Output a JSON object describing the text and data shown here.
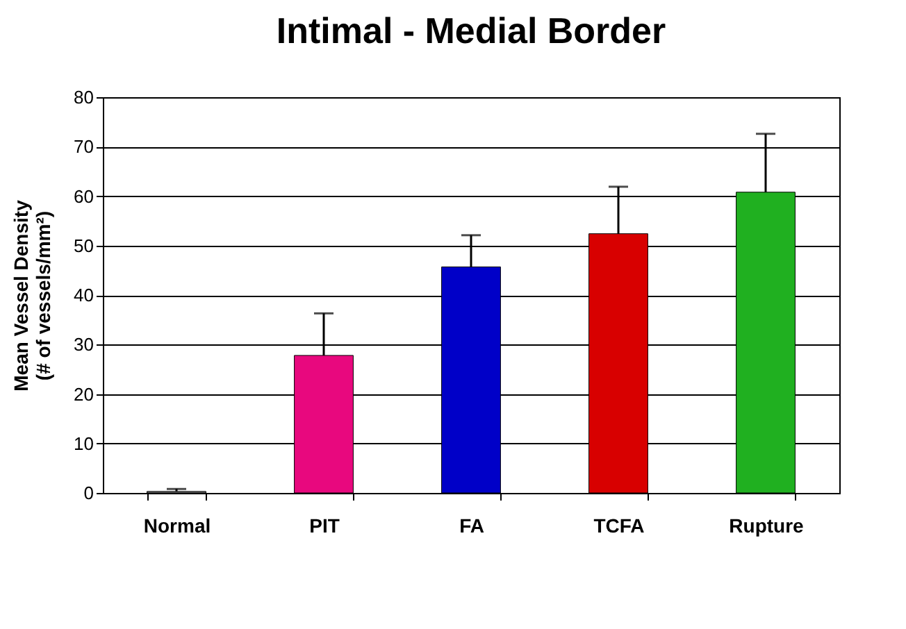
{
  "chart_data": {
    "type": "bar",
    "title": "Intimal - Medial Border",
    "ylabel": [
      "Mean Vessel Density",
      "(# of vessels/mm²)"
    ],
    "categories": [
      "Normal",
      "PIT",
      "FA",
      "TCFA",
      "Rupture"
    ],
    "values": [
      0.3,
      27.8,
      45.7,
      52.4,
      60.8
    ],
    "colors": [
      "#808080",
      "#e8087e",
      "#0000c8",
      "#d80000",
      "#20b020"
    ],
    "errors": [
      [
        0.3,
        0.8
      ],
      [
        27.8,
        36.3
      ],
      [
        45.7,
        52.1
      ],
      [
        52.4,
        61.9
      ],
      [
        60.8,
        72.6
      ]
    ],
    "ylim": [
      0,
      80
    ],
    "yticks": [
      0,
      10,
      20,
      30,
      40,
      50,
      60,
      70,
      80
    ],
    "grid": "y",
    "legend": false
  }
}
